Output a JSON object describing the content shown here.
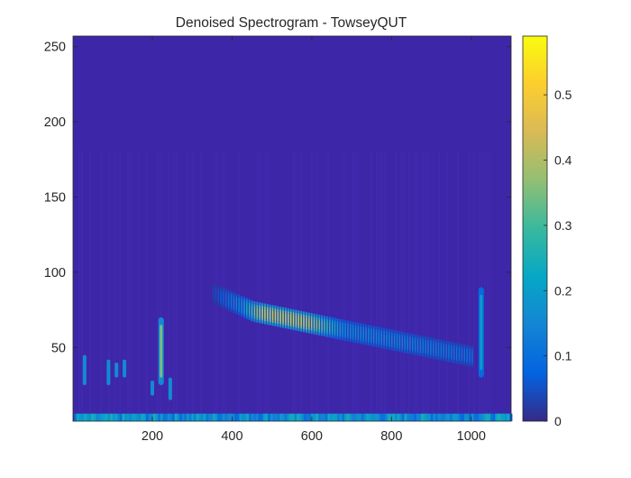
{
  "chart_data": {
    "type": "heatmap",
    "title": "Denoised Spectrogram - TowseyQUT",
    "xlabel": "",
    "ylabel": "",
    "xlim": [
      1,
      1100
    ],
    "ylim": [
      1,
      257
    ],
    "x_ticks": [
      200,
      400,
      600,
      800,
      1000
    ],
    "y_ticks": [
      50,
      100,
      150,
      200,
      250
    ],
    "colormap": "parula",
    "background_color": "#3E26A8",
    "colorbar": {
      "ticks": [
        0,
        0.1,
        0.2,
        0.3,
        0.4,
        0.5
      ],
      "clim": [
        0,
        0.59
      ],
      "placement": "right",
      "colors": [
        "#352A87",
        "#0363E1",
        "#1485D4",
        "#06A7C6",
        "#38B99E",
        "#92BF73",
        "#D9BA56",
        "#FCCE2E",
        "#F9FB0E"
      ]
    },
    "features": [
      {
        "name": "descending-chirp",
        "x": [
          350,
          1000
        ],
        "y": [
          86,
          44
        ],
        "peak_value": 0.55,
        "peak_x": [
          440,
          600
        ]
      },
      {
        "name": "vertical-streak",
        "x": 222,
        "y": [
          25,
          70
        ],
        "peak_value": 0.35
      },
      {
        "name": "vertical-streak",
        "x": 1025,
        "y": [
          30,
          90
        ],
        "peak_value": 0.2
      },
      {
        "name": "low-frequency-band",
        "x": [
          1,
          1100
        ],
        "y": [
          1,
          6
        ],
        "peak_value": 0.25
      }
    ]
  }
}
